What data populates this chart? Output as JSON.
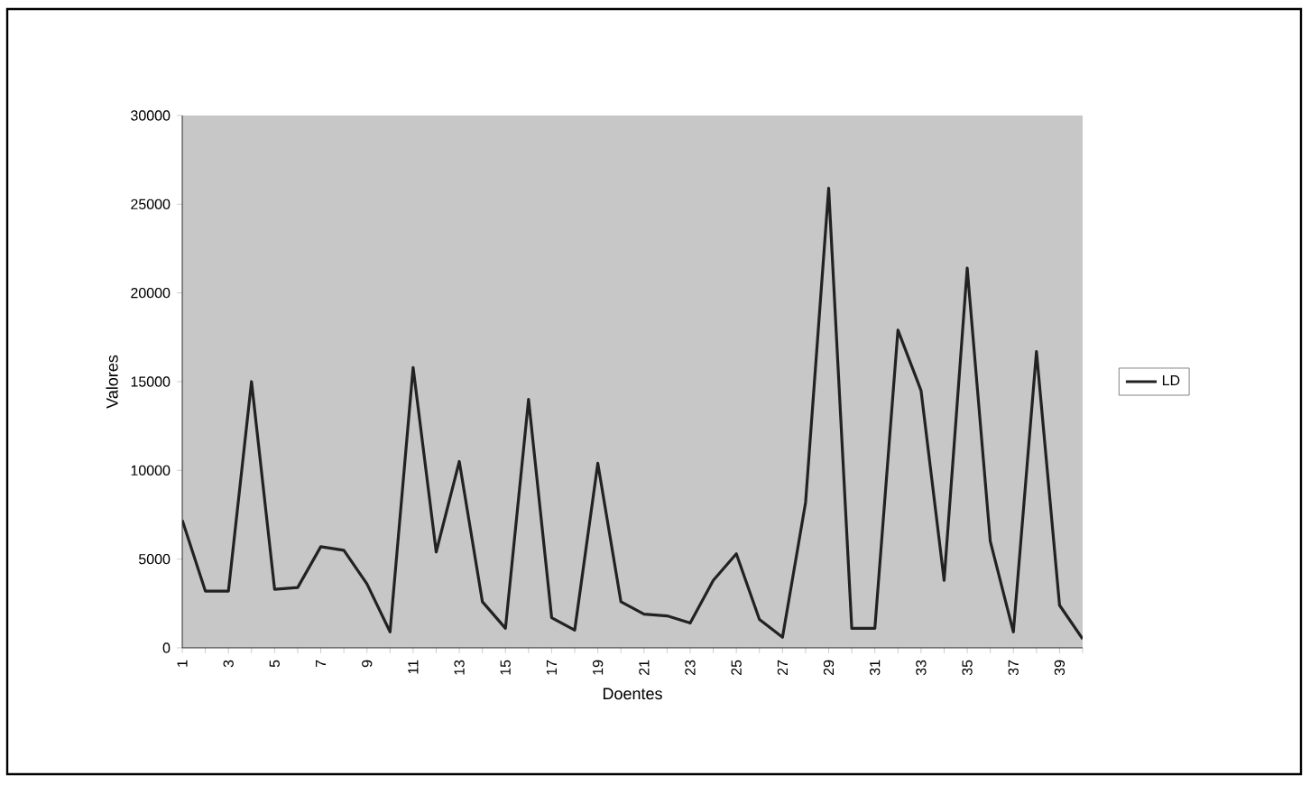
{
  "chart_data": {
    "type": "line",
    "xlabel": "Doentes",
    "ylabel": "Valores",
    "categories": [
      "1",
      null,
      "3",
      null,
      "5",
      null,
      "7",
      null,
      "9",
      null,
      "11",
      null,
      "13",
      null,
      "15",
      null,
      "17",
      null,
      "19",
      null,
      "21",
      null,
      "23",
      null,
      "25",
      null,
      "27",
      null,
      "29",
      null,
      "31",
      null,
      "33",
      null,
      "35",
      null,
      "37",
      null,
      "39",
      null
    ],
    "series": [
      {
        "name": "LD",
        "color": "#222222",
        "values": [
          7200,
          3200,
          3200,
          15000,
          3300,
          3400,
          5700,
          5500,
          3600,
          900,
          15800,
          5400,
          10500,
          2600,
          1100,
          14000,
          1700,
          1000,
          10400,
          2600,
          1900,
          1800,
          1400,
          3800,
          5300,
          1600,
          600,
          8200,
          25900,
          1100,
          1100,
          17900,
          14500,
          3800,
          21400,
          6000,
          900,
          16700,
          2400,
          500
        ]
      }
    ],
    "ylim": [
      0,
      30000
    ],
    "yticks": [
      0,
      5000,
      10000,
      15000,
      20000,
      25000,
      30000
    ],
    "grid": false,
    "legend": "right",
    "marker": "none",
    "line_style": "solid"
  }
}
